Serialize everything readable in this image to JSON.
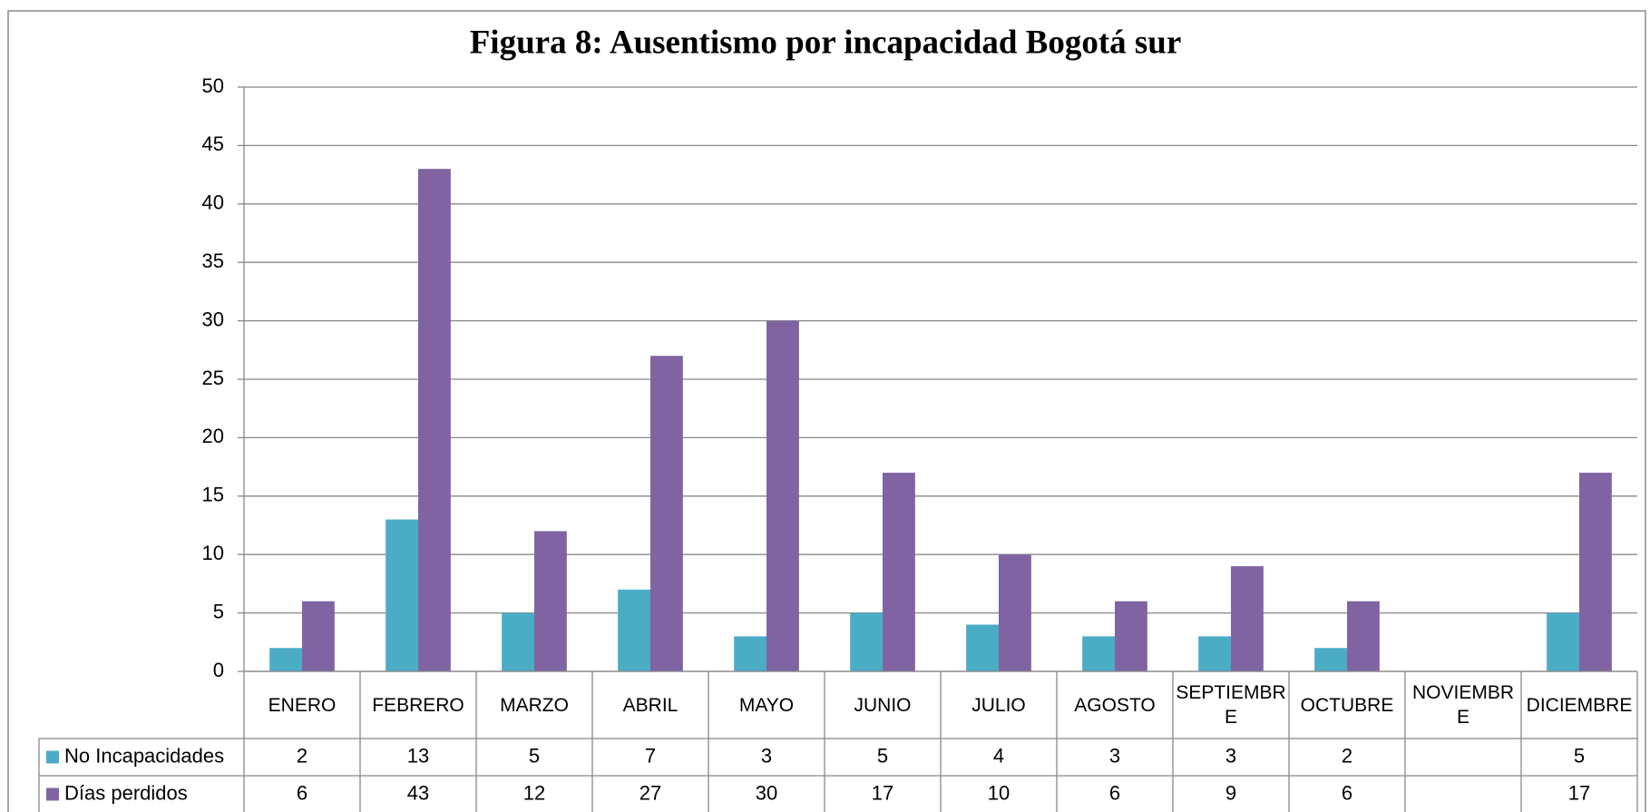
{
  "chart_data": {
    "type": "bar",
    "title": "Figura 8: Ausentismo por incapacidad Bogotá sur",
    "categories": [
      "ENERO",
      "FEBRERO",
      "MARZO",
      "ABRIL",
      "MAYO",
      "JUNIO",
      "JULIO",
      "AGOSTO",
      "SEPTIEMBRE",
      "OCTUBRE",
      "NOVIEMBRE",
      "DICIEMBRE"
    ],
    "series": [
      {
        "name": "No Incapacidades",
        "color": "#4bacc6",
        "values": [
          2,
          13,
          5,
          7,
          3,
          5,
          4,
          3,
          3,
          2,
          null,
          5
        ]
      },
      {
        "name": "Días perdidos",
        "color": "#8064a2",
        "values": [
          6,
          43,
          12,
          27,
          30,
          17,
          10,
          6,
          9,
          6,
          null,
          17
        ]
      }
    ],
    "ylim": [
      0,
      50
    ],
    "yticks": [
      0,
      5,
      10,
      15,
      20,
      25,
      30,
      35,
      40,
      45,
      50
    ],
    "grid": true,
    "data_table": true
  }
}
